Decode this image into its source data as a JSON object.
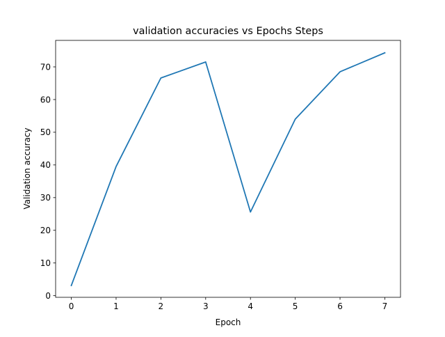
{
  "chart_data": {
    "type": "line",
    "title": "validation accuracies vs Epochs Steps",
    "xlabel": "Epoch",
    "ylabel": "Validation accuracy",
    "x": [
      0,
      1,
      2,
      3,
      4,
      5,
      6,
      7
    ],
    "x_ticks": [
      0,
      1,
      2,
      3,
      4,
      5,
      6,
      7
    ],
    "xlim": [
      -0.35,
      7.35
    ],
    "y_ticks": [
      0,
      10,
      20,
      30,
      40,
      50,
      60,
      70
    ],
    "ylim": [
      -0.5,
      78.1
    ],
    "grid": false,
    "series": [
      {
        "values": [
          3.1,
          39.5,
          66.6,
          71.5,
          25.6,
          54.0,
          68.5,
          74.3
        ],
        "color": "#1f77b4"
      }
    ]
  }
}
